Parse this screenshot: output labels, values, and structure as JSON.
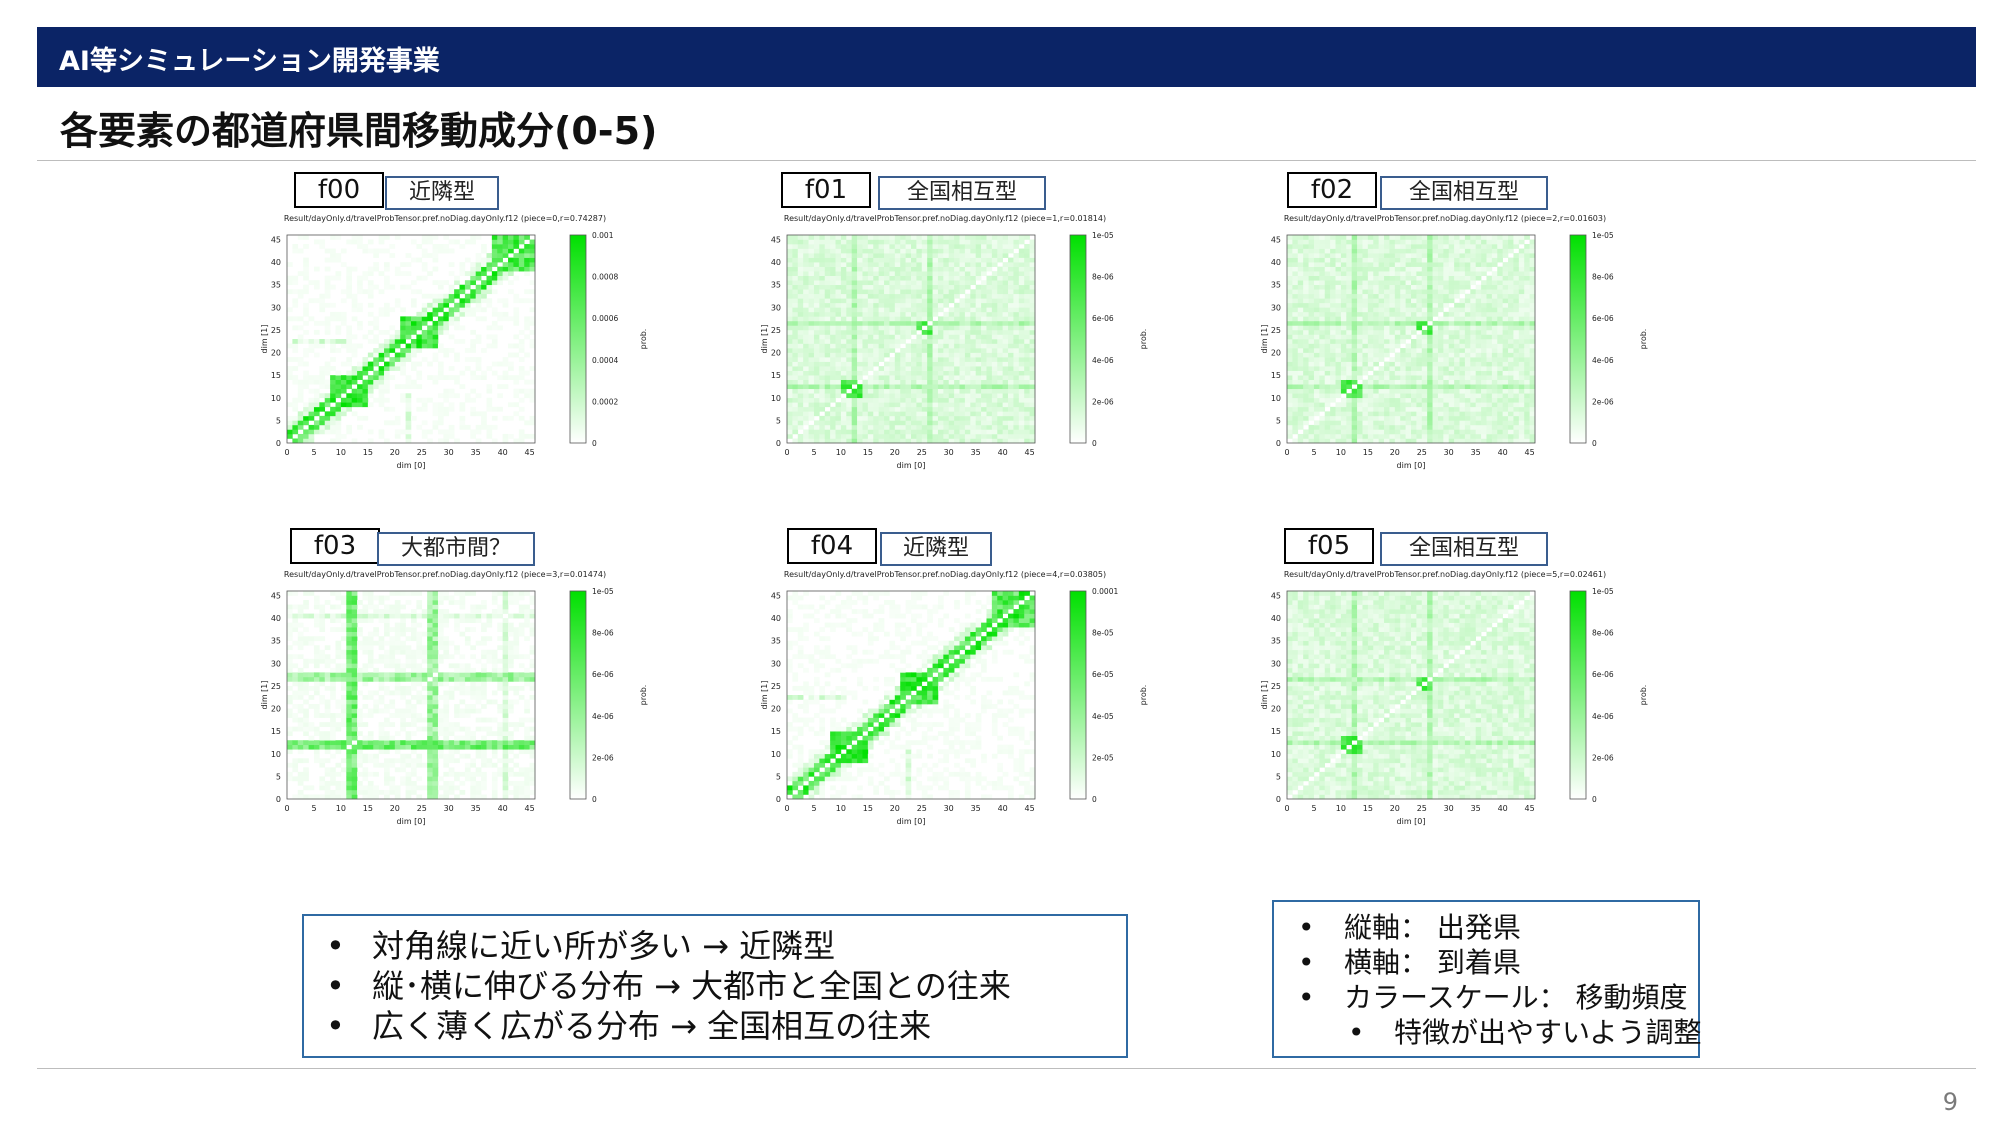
{
  "header": {
    "section": "AI等シミュレーション開発事業"
  },
  "title": "各要素の都道府県間移動成分(0-5)",
  "panels": [
    {
      "id": "f00",
      "type": "近隣型",
      "plot_title": "Result/dayOnly.d/travelProbTensor.pref.noDiag.dayOnly.f12 (piece=0,r=0.74287)",
      "pattern": "diagonal",
      "cbar_ticks": [
        {
          "v": 0,
          "label": "0"
        },
        {
          "v": 0.0002,
          "label": "0.0002"
        },
        {
          "v": 0.0004,
          "label": "0.0004"
        },
        {
          "v": 0.0006,
          "label": "0.0006"
        },
        {
          "v": 0.0008,
          "label": "0.0008"
        },
        {
          "v": 0.001,
          "label": "0.001"
        }
      ],
      "cbar_max": 0.001
    },
    {
      "id": "f01",
      "type": "全国相互型",
      "plot_title": "Result/dayOnly.d/travelProbTensor.pref.noDiag.dayOnly.f12 (piece=1,r=0.01814)",
      "pattern": "diffuse",
      "cbar_ticks": [
        {
          "v": 0,
          "label": "0"
        },
        {
          "v": 2e-06,
          "label": "2e-06"
        },
        {
          "v": 4e-06,
          "label": "4e-06"
        },
        {
          "v": 6e-06,
          "label": "6e-06"
        },
        {
          "v": 8e-06,
          "label": "8e-06"
        },
        {
          "v": 1e-05,
          "label": "1e-05"
        }
      ],
      "cbar_max": 1e-05
    },
    {
      "id": "f02",
      "type": "全国相互型",
      "plot_title": "Result/dayOnly.d/travelProbTensor.pref.noDiag.dayOnly.f12 (piece=2,r=0.01603)",
      "pattern": "diffuse",
      "cbar_ticks": [
        {
          "v": 0,
          "label": "0"
        },
        {
          "v": 2e-06,
          "label": "2e-06"
        },
        {
          "v": 4e-06,
          "label": "4e-06"
        },
        {
          "v": 6e-06,
          "label": "6e-06"
        },
        {
          "v": 8e-06,
          "label": "8e-06"
        },
        {
          "v": 1e-05,
          "label": "1e-05"
        }
      ],
      "cbar_max": 1e-05
    },
    {
      "id": "f03",
      "type": "大都市間？",
      "plot_title": "Result/dayOnly.d/travelProbTensor.pref.noDiag.dayOnly.f12 (piece=3,r=0.01474)",
      "pattern": "cross",
      "cbar_ticks": [
        {
          "v": 0,
          "label": "0"
        },
        {
          "v": 2e-06,
          "label": "2e-06"
        },
        {
          "v": 4e-06,
          "label": "4e-06"
        },
        {
          "v": 6e-06,
          "label": "6e-06"
        },
        {
          "v": 8e-06,
          "label": "8e-06"
        },
        {
          "v": 1e-05,
          "label": "1e-05"
        }
      ],
      "cbar_max": 1e-05
    },
    {
      "id": "f04",
      "type": "近隣型",
      "plot_title": "Result/dayOnly.d/travelProbTensor.pref.noDiag.dayOnly.f12 (piece=4,r=0.03805)",
      "pattern": "diagonal",
      "cbar_ticks": [
        {
          "v": 0,
          "label": "0"
        },
        {
          "v": 2e-05,
          "label": "2e-05"
        },
        {
          "v": 4e-05,
          "label": "4e-05"
        },
        {
          "v": 6e-05,
          "label": "6e-05"
        },
        {
          "v": 8e-05,
          "label": "8e-05"
        },
        {
          "v": 0.0001,
          "label": "0.0001"
        }
      ],
      "cbar_max": 0.0001
    },
    {
      "id": "f05",
      "type": "全国相互型",
      "plot_title": "Result/dayOnly.d/travelProbTensor.pref.noDiag.dayOnly.f12 (piece=5,r=0.02461)",
      "pattern": "diffuse",
      "cbar_ticks": [
        {
          "v": 0,
          "label": "0"
        },
        {
          "v": 2e-06,
          "label": "2e-06"
        },
        {
          "v": 4e-06,
          "label": "4e-06"
        },
        {
          "v": 6e-06,
          "label": "6e-06"
        },
        {
          "v": 8e-06,
          "label": "8e-06"
        },
        {
          "v": 1e-05,
          "label": "1e-05"
        }
      ],
      "cbar_max": 1e-05
    }
  ],
  "axes": {
    "xlabel": "dim [0]",
    "ylabel": "dim [1]",
    "cbar_label": "prob.",
    "ticks": [
      0,
      5,
      10,
      15,
      20,
      25,
      30,
      35,
      40,
      45
    ],
    "range": [
      0,
      46
    ]
  },
  "colors": {
    "banner": "#0b2466",
    "heat_max": "#00e000",
    "heat_min": "#ffffff",
    "box_border": "#2f6aa3"
  },
  "summary": {
    "items": [
      "対角線に近い所が多い → 近隣型",
      "縦･横に伸びる分布 → 大都市と全国との往来",
      "広く薄く広がる分布 → 全国相互の往来"
    ]
  },
  "legend_notes": {
    "items": [
      "縦軸： 出発県",
      "横軸： 到着県",
      "カラースケール： 移動頻度"
    ],
    "sub_item": "特徴が出やすいよう調整"
  },
  "page_number": "9"
}
